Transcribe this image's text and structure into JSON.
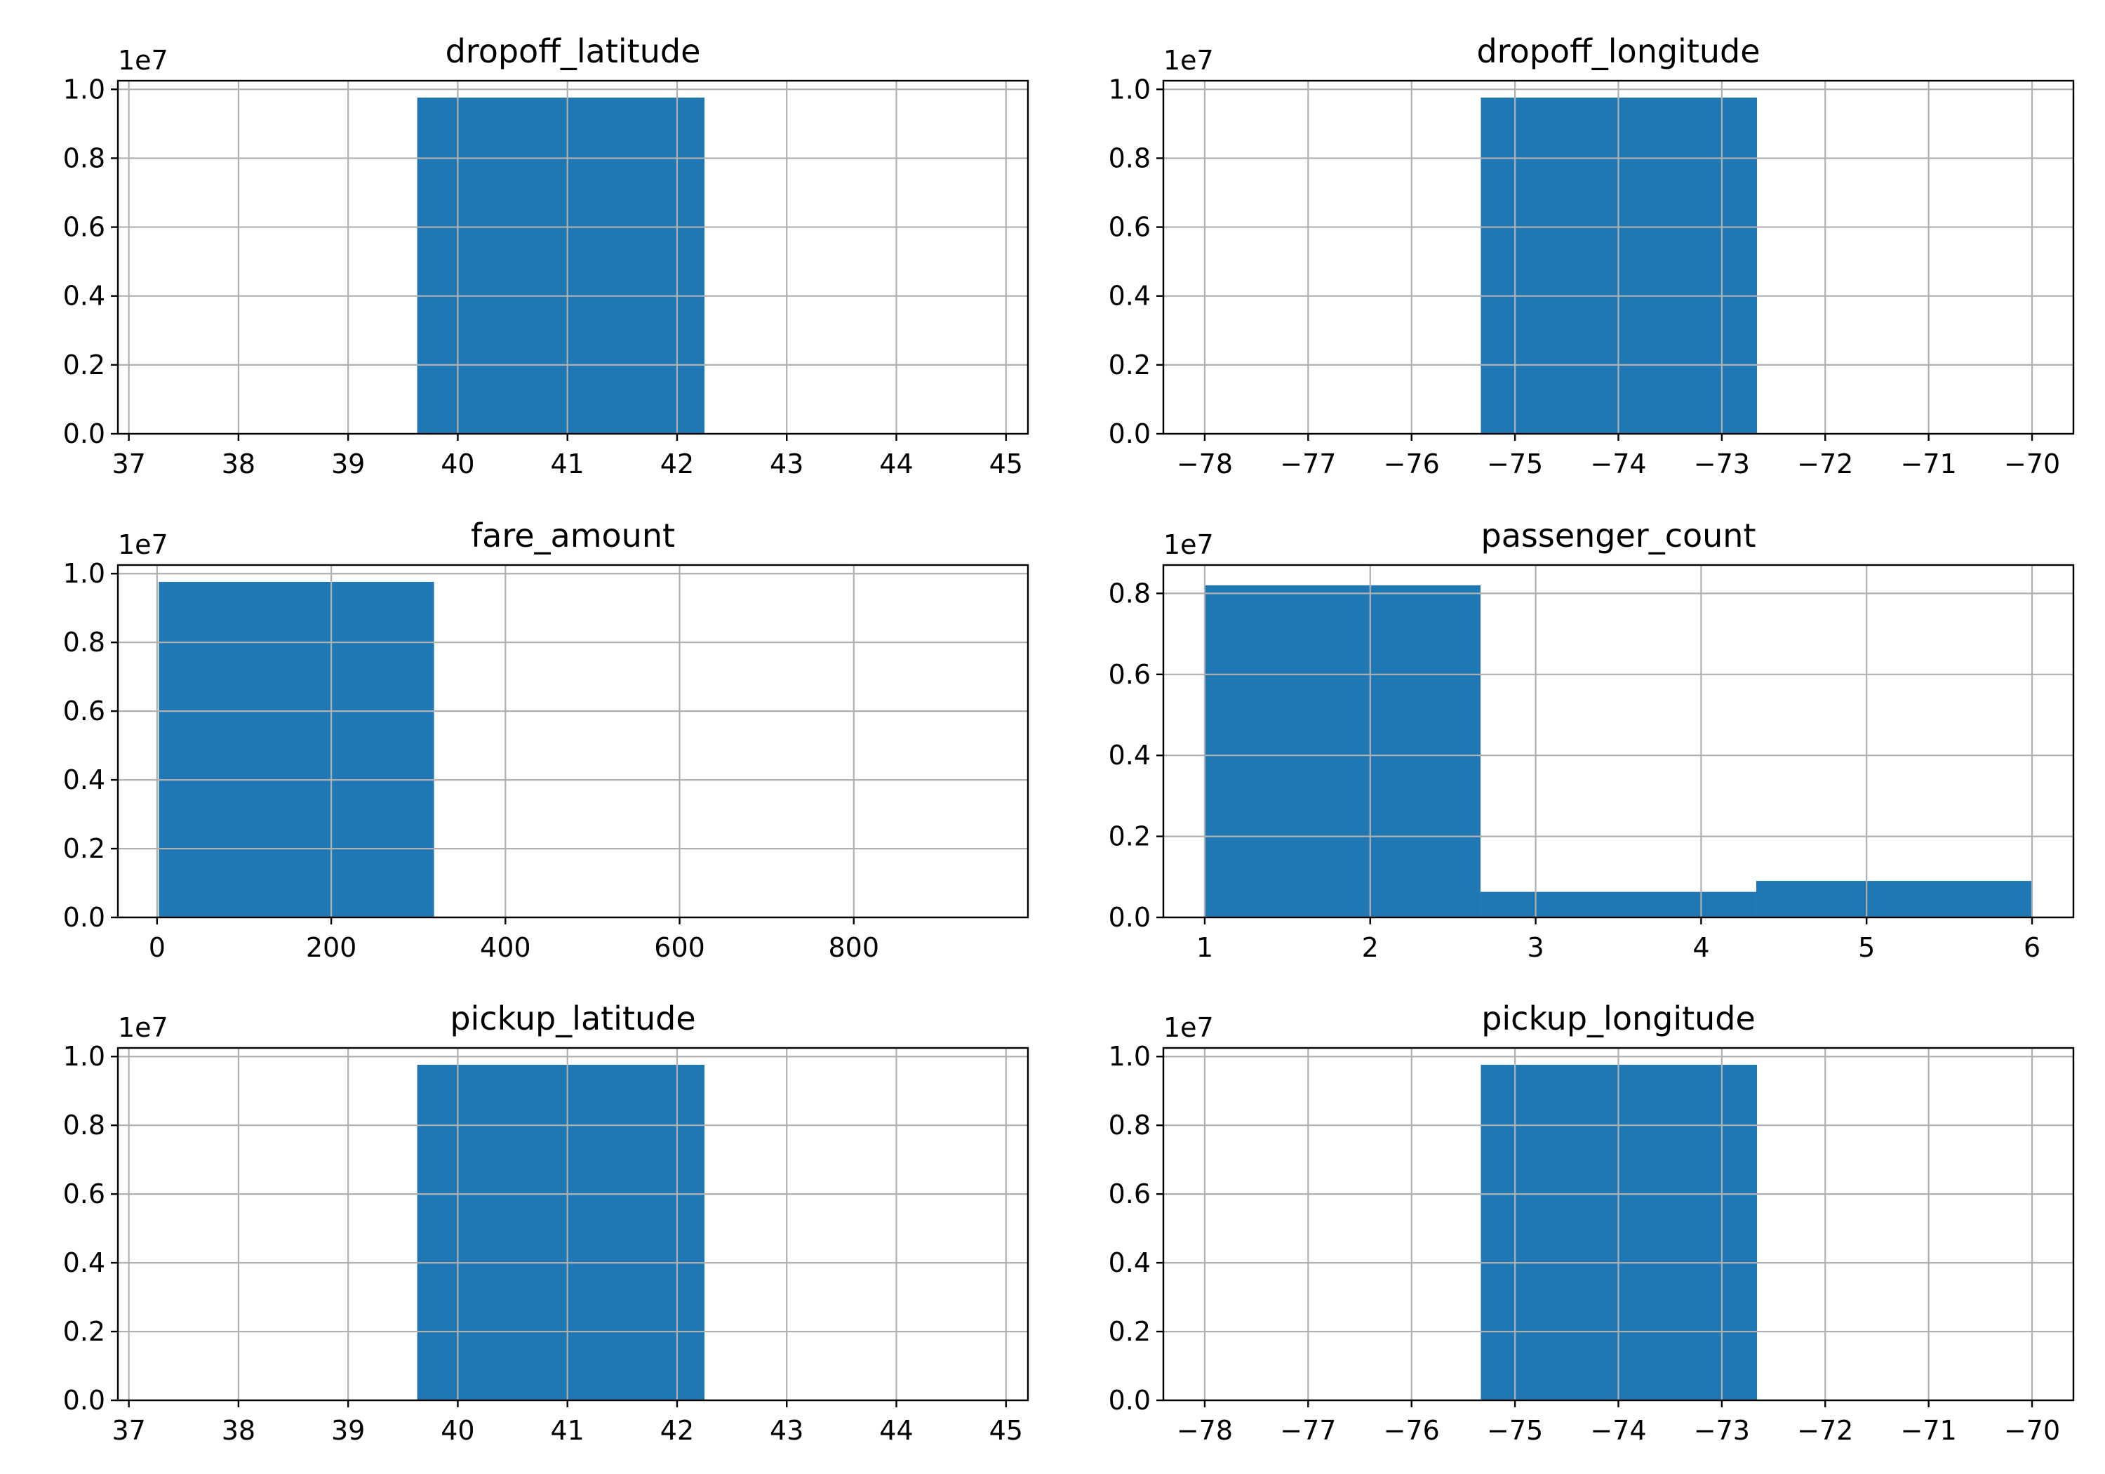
{
  "chart_data": [
    {
      "type": "bar",
      "title": "dropoff_latitude",
      "multiplier": "1e7",
      "xlim": [
        36.9,
        45.2
      ],
      "ylim": [
        0,
        1.025
      ],
      "xticks": [
        37,
        38,
        39,
        40,
        41,
        42,
        43,
        44,
        45
      ],
      "xtick_labels": [
        "37",
        "38",
        "39",
        "40",
        "41",
        "42",
        "43",
        "44",
        "45"
      ],
      "yticks": [
        0,
        0.2,
        0.4,
        0.6,
        0.8,
        1.0
      ],
      "ytick_labels": [
        "0.0",
        "0.2",
        "0.4",
        "0.6",
        "0.8",
        "1.0"
      ],
      "bars": [
        {
          "x0": 39.63,
          "x1": 42.25,
          "value": 0.976
        }
      ],
      "grid": true,
      "color": "#1f77b4"
    },
    {
      "type": "bar",
      "title": "dropoff_longitude",
      "multiplier": "1e7",
      "xlim": [
        -78.4,
        -69.6
      ],
      "ylim": [
        0,
        1.025
      ],
      "xticks": [
        -78,
        -77,
        -76,
        -75,
        -74,
        -73,
        -72,
        -71,
        -70
      ],
      "xtick_labels": [
        "−78",
        "−77",
        "−76",
        "−75",
        "−74",
        "−73",
        "−72",
        "−71",
        "−70"
      ],
      "yticks": [
        0,
        0.2,
        0.4,
        0.6,
        0.8,
        1.0
      ],
      "ytick_labels": [
        "0.0",
        "0.2",
        "0.4",
        "0.6",
        "0.8",
        "1.0"
      ],
      "bars": [
        {
          "x0": -75.33,
          "x1": -72.66,
          "value": 0.976
        }
      ],
      "grid": true,
      "color": "#1f77b4"
    },
    {
      "type": "bar",
      "title": "fare_amount",
      "multiplier": "1e7",
      "xlim": [
        -45,
        1000
      ],
      "ylim": [
        0,
        1.025
      ],
      "xticks": [
        0,
        200,
        400,
        600,
        800
      ],
      "xtick_labels": [
        "0",
        "200",
        "400",
        "600",
        "800"
      ],
      "yticks": [
        0,
        0.2,
        0.4,
        0.6,
        0.8,
        1.0
      ],
      "ytick_labels": [
        "0.0",
        "0.2",
        "0.4",
        "0.6",
        "0.8",
        "1.0"
      ],
      "bars": [
        {
          "x0": 2,
          "x1": 318,
          "value": 0.976
        }
      ],
      "grid": true,
      "color": "#1f77b4"
    },
    {
      "type": "bar",
      "title": "passenger_count",
      "multiplier": "1e7",
      "xlim": [
        0.75,
        6.25
      ],
      "ylim": [
        0,
        0.87
      ],
      "xticks": [
        1,
        2,
        3,
        4,
        5,
        6
      ],
      "xtick_labels": [
        "1",
        "2",
        "3",
        "4",
        "5",
        "6"
      ],
      "yticks": [
        0,
        0.2,
        0.4,
        0.6,
        0.8
      ],
      "ytick_labels": [
        "0.0",
        "0.2",
        "0.4",
        "0.6",
        "0.8"
      ],
      "bars": [
        {
          "x0": 1.0,
          "x1": 2.667,
          "value": 0.82
        },
        {
          "x0": 2.667,
          "x1": 4.333,
          "value": 0.063
        },
        {
          "x0": 4.333,
          "x1": 6.0,
          "value": 0.09
        }
      ],
      "grid": true,
      "color": "#1f77b4"
    },
    {
      "type": "bar",
      "title": "pickup_latitude",
      "multiplier": "1e7",
      "xlim": [
        36.9,
        45.2
      ],
      "ylim": [
        0,
        1.025
      ],
      "xticks": [
        37,
        38,
        39,
        40,
        41,
        42,
        43,
        44,
        45
      ],
      "xtick_labels": [
        "37",
        "38",
        "39",
        "40",
        "41",
        "42",
        "43",
        "44",
        "45"
      ],
      "yticks": [
        0,
        0.2,
        0.4,
        0.6,
        0.8,
        1.0
      ],
      "ytick_labels": [
        "0.0",
        "0.2",
        "0.4",
        "0.6",
        "0.8",
        "1.0"
      ],
      "bars": [
        {
          "x0": 39.63,
          "x1": 42.25,
          "value": 0.976
        }
      ],
      "grid": true,
      "color": "#1f77b4"
    },
    {
      "type": "bar",
      "title": "pickup_longitude",
      "multiplier": "1e7",
      "xlim": [
        -78.4,
        -69.6
      ],
      "ylim": [
        0,
        1.025
      ],
      "xticks": [
        -78,
        -77,
        -76,
        -75,
        -74,
        -73,
        -72,
        -71,
        -70
      ],
      "xtick_labels": [
        "−78",
        "−77",
        "−76",
        "−75",
        "−74",
        "−73",
        "−72",
        "−71",
        "−70"
      ],
      "yticks": [
        0,
        0.2,
        0.4,
        0.6,
        0.8,
        1.0
      ],
      "ytick_labels": [
        "0.0",
        "0.2",
        "0.4",
        "0.6",
        "0.8",
        "1.0"
      ],
      "bars": [
        {
          "x0": -75.33,
          "x1": -72.66,
          "value": 0.976
        }
      ],
      "grid": true,
      "color": "#1f77b4"
    }
  ]
}
